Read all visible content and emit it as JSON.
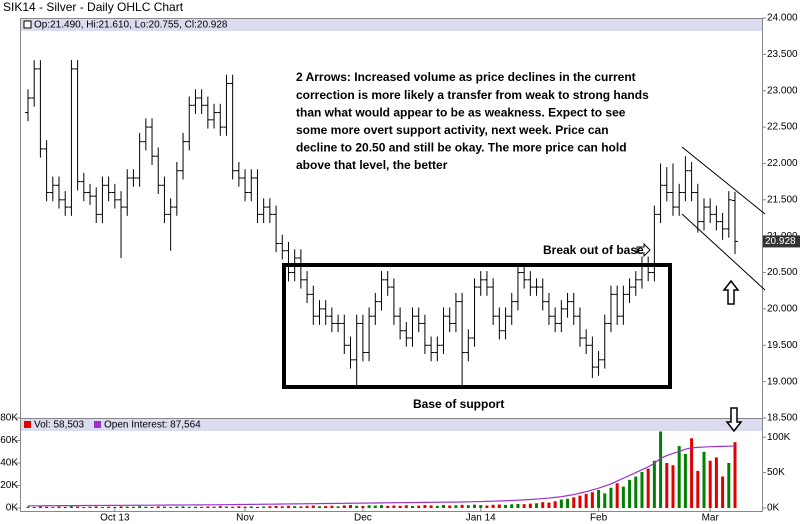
{
  "chart_data": {
    "type": "ohlc",
    "title": "SIK14 - Silver - Daily OHLC Chart",
    "legend_text": "Op:21.490, Hi:21.610, Lo:20.755, Cl:20.928",
    "bar_color": "#000000",
    "categories": [
      null,
      null,
      null,
      null,
      null,
      null,
      null,
      null,
      null,
      null,
      null,
      null,
      null,
      null,
      "Oct 13",
      null,
      null,
      null,
      null,
      null,
      null,
      null,
      null,
      null,
      null,
      null,
      null,
      null,
      null,
      null,
      null,
      null,
      null,
      null,
      null,
      "Nov",
      null,
      null,
      null,
      null,
      null,
      null,
      null,
      null,
      null,
      null,
      null,
      null,
      null,
      null,
      null,
      null,
      null,
      null,
      "Dec",
      null,
      null,
      null,
      null,
      null,
      null,
      null,
      null,
      null,
      null,
      null,
      null,
      null,
      null,
      null,
      null,
      null,
      null,
      "Jan 14",
      null,
      null,
      null,
      null,
      null,
      null,
      null,
      null,
      null,
      null,
      null,
      null,
      null,
      null,
      null,
      null,
      null,
      null,
      "Feb",
      null,
      null,
      null,
      null,
      null,
      null,
      null,
      null,
      null,
      null,
      null,
      null,
      null,
      null,
      null,
      null,
      null,
      "Mar",
      null,
      null,
      null,
      null
    ],
    "open": [
      22.7,
      22.9,
      23.3,
      22.2,
      21.6,
      21.7,
      21.5,
      21.4,
      23.3,
      21.75,
      21.6,
      21.55,
      21.3,
      21.7,
      21.6,
      21.5,
      21.4,
      21.8,
      21.8,
      22.3,
      22.5,
      22.1,
      21.7,
      21.3,
      21.4,
      21.9,
      22.3,
      22.8,
      22.9,
      22.8,
      22.6,
      22.7,
      22.5,
      23.1,
      21.9,
      21.8,
      21.6,
      21.8,
      21.3,
      21.4,
      21.3,
      20.9,
      20.8,
      20.5,
      20.7,
      20.4,
      20.2,
      19.9,
      20.0,
      19.9,
      19.8,
      19.8,
      19.5,
      19.3,
      19.8,
      19.4,
      19.9,
      20.1,
      20.4,
      20.3,
      19.9,
      19.7,
      19.6,
      19.9,
      19.8,
      19.5,
      19.4,
      19.5,
      19.9,
      19.8,
      20.1,
      19.4,
      19.6,
      20.3,
      20.4,
      20.3,
      19.9,
      19.7,
      19.9,
      20.1,
      20.5,
      20.4,
      20.3,
      20.3,
      20.1,
      19.9,
      19.8,
      20.0,
      20.1,
      19.9,
      19.6,
      19.5,
      19.2,
      19.3,
      19.8,
      20.2,
      19.9,
      20.2,
      20.3,
      20.4,
      20.6,
      20.5,
      21.3,
      21.7,
      21.6,
      21.4,
      21.6,
      21.9,
      21.6,
      21.2,
      21.4,
      21.3,
      21.2,
      21.1,
      21.49
    ],
    "high": [
      23.02,
      23.42,
      23.42,
      22.32,
      21.82,
      21.82,
      21.62,
      23.42,
      23.42,
      21.87,
      21.72,
      21.67,
      21.82,
      21.82,
      21.72,
      21.62,
      21.92,
      21.92,
      22.42,
      22.62,
      22.62,
      22.22,
      21.82,
      21.52,
      22.02,
      22.42,
      22.92,
      23.02,
      23.02,
      22.92,
      22.82,
      22.82,
      23.22,
      23.22,
      22.02,
      21.92,
      21.92,
      21.92,
      21.52,
      21.52,
      21.42,
      21.02,
      20.92,
      20.82,
      20.82,
      20.52,
      20.32,
      20.12,
      20.12,
      20.02,
      19.92,
      19.92,
      19.62,
      19.92,
      19.92,
      20.02,
      20.22,
      20.52,
      20.52,
      20.42,
      20.02,
      19.82,
      20.02,
      20.02,
      19.92,
      19.62,
      19.62,
      20.02,
      20.02,
      20.22,
      20.22,
      19.72,
      20.42,
      20.52,
      20.52,
      20.42,
      20.02,
      20.02,
      20.22,
      20.62,
      20.62,
      20.52,
      20.42,
      20.42,
      20.22,
      20.02,
      20.12,
      20.22,
      20.22,
      20.02,
      19.72,
      19.62,
      19.42,
      19.92,
      20.32,
      20.32,
      20.32,
      20.42,
      20.52,
      20.72,
      20.72,
      21.42,
      22.0,
      21.95,
      22.0,
      21.72,
      22.1,
      22.02,
      21.72,
      21.52,
      21.52,
      21.42,
      21.32,
      21.62,
      21.61
    ],
    "low": [
      22.58,
      22.78,
      22.08,
      21.48,
      21.48,
      21.38,
      21.28,
      21.28,
      21.63,
      21.48,
      21.43,
      21.18,
      21.18,
      21.48,
      21.38,
      20.7,
      21.28,
      21.68,
      21.68,
      22.18,
      21.98,
      21.58,
      21.18,
      20.8,
      21.28,
      21.78,
      22.18,
      22.68,
      22.68,
      22.48,
      22.48,
      22.38,
      22.38,
      21.78,
      21.68,
      21.48,
      21.48,
      21.18,
      21.18,
      21.18,
      20.78,
      20.68,
      20.38,
      20.38,
      20.28,
      20.08,
      19.78,
      19.78,
      19.78,
      19.68,
      19.68,
      19.38,
      19.18,
      18.95,
      19.28,
      19.28,
      19.78,
      19.98,
      20.18,
      19.78,
      19.58,
      19.48,
      19.48,
      19.68,
      19.38,
      19.28,
      19.28,
      19.38,
      19.68,
      19.68,
      18.9,
      19.28,
      19.48,
      20.18,
      20.18,
      19.78,
      19.58,
      19.58,
      19.78,
      19.98,
      20.28,
      20.18,
      20.18,
      19.98,
      19.78,
      19.68,
      19.68,
      19.88,
      19.78,
      19.48,
      19.38,
      19.05,
      19.08,
      19.18,
      19.68,
      19.78,
      19.78,
      20.08,
      20.18,
      20.28,
      20.38,
      20.38,
      21.18,
      21.48,
      21.28,
      21.28,
      21.48,
      21.48,
      21.05,
      21.08,
      21.18,
      21.08,
      20.95,
      20.98,
      20.755
    ],
    "close": [
      22.9,
      23.3,
      22.2,
      21.6,
      21.7,
      21.5,
      21.4,
      23.3,
      21.75,
      21.6,
      21.55,
      21.3,
      21.7,
      21.6,
      21.5,
      21.4,
      21.8,
      21.8,
      22.3,
      22.5,
      22.1,
      21.7,
      21.3,
      21.4,
      21.9,
      22.3,
      22.8,
      22.9,
      22.8,
      22.6,
      22.7,
      22.5,
      23.1,
      21.9,
      21.8,
      21.6,
      21.8,
      21.3,
      21.4,
      21.3,
      20.9,
      20.8,
      20.5,
      20.7,
      20.4,
      20.2,
      19.9,
      20.0,
      19.9,
      19.8,
      19.8,
      19.5,
      19.3,
      19.8,
      19.4,
      19.9,
      20.1,
      20.4,
      20.3,
      19.9,
      19.7,
      19.6,
      19.9,
      19.8,
      19.5,
      19.4,
      19.5,
      19.9,
      19.8,
      20.1,
      19.4,
      19.6,
      20.3,
      20.4,
      20.3,
      19.9,
      19.7,
      19.9,
      20.1,
      20.5,
      20.4,
      20.3,
      20.3,
      20.1,
      19.9,
      19.8,
      20.0,
      20.1,
      19.9,
      19.6,
      19.5,
      19.2,
      19.3,
      19.8,
      20.2,
      19.9,
      20.2,
      20.3,
      20.4,
      20.6,
      20.5,
      21.3,
      21.7,
      21.6,
      21.4,
      21.6,
      21.9,
      21.6,
      21.2,
      21.4,
      21.3,
      21.2,
      21.1,
      21.5,
      20.928
    ],
    "ylim": [
      18.5,
      24.0
    ],
    "yticks": [
      {
        "value": 18.5,
        "label": "18.500"
      },
      {
        "value": 19.0,
        "label": "19.000"
      },
      {
        "value": 19.5,
        "label": "19.500"
      },
      {
        "value": 20.0,
        "label": "20.000"
      },
      {
        "value": 20.5,
        "label": "20.500"
      },
      {
        "value": 21.0,
        "label": "21.000"
      },
      {
        "value": 21.5,
        "label": "21.500"
      },
      {
        "value": 22.0,
        "label": "22.000"
      },
      {
        "value": 22.5,
        "label": "22.500"
      },
      {
        "value": 23.0,
        "label": "23.000"
      },
      {
        "value": 23.5,
        "label": "23.500"
      },
      {
        "value": 24.0,
        "label": "24.000"
      }
    ],
    "annotations": {
      "note_lines": [
        "2 Arrows:  Increased volume as price declines in the current",
        "correction is more likely a transfer from weak to strong hands",
        "than what would appear to be as weakness.  Expect to see",
        "some more overt support activity, next week.  Price can",
        "decline to 20.50 and still be okay.  The more price can hold",
        "above that level, the better"
      ],
      "breakout": "Break out of base",
      "base": "Base of support"
    },
    "volume": {
      "name": "Vol: 58,503",
      "up_color": "#008000",
      "down_color": "#e00000",
      "values": [
        1200,
        900,
        1500,
        1100,
        800,
        1300,
        1000,
        1600,
        1200,
        900,
        1100,
        1400,
        900,
        1200,
        1000,
        1500,
        1300,
        1100,
        1600,
        1200,
        1000,
        1400,
        1200,
        900,
        1300,
        1500,
        1100,
        1200,
        1000,
        1400,
        1200,
        1600,
        1300,
        1100,
        1500,
        1200,
        1400,
        1000,
        1300,
        1600,
        1800,
        1500,
        2000,
        1700,
        1400,
        1900,
        2200,
        1600,
        1800,
        2000,
        1500,
        2300,
        2600,
        2000,
        1800,
        2400,
        2100,
        2500,
        1900,
        2200,
        2000,
        2400,
        1800,
        2100,
        2600,
        2300,
        1900,
        2700,
        2200,
        2400,
        2800,
        2500,
        3000,
        2600,
        2200,
        2900,
        3100,
        2700,
        3300,
        3600,
        3400,
        3900,
        4200,
        5200,
        4800,
        6000,
        7500,
        8200,
        9500,
        11000,
        12500,
        14000,
        16000,
        13000,
        18000,
        22000,
        19000,
        25000,
        28000,
        32000,
        35000,
        42000,
        68000,
        40000,
        38000,
        55000,
        48000,
        62000,
        33000,
        50000,
        42000,
        45000,
        28000,
        40000,
        58503
      ],
      "ylim": [
        0,
        80000
      ],
      "yticks": [
        {
          "value": 0,
          "label": "0K"
        },
        {
          "value": 20000,
          "label": "20K"
        },
        {
          "value": 40000,
          "label": "40K"
        },
        {
          "value": 60000,
          "label": "60K"
        },
        {
          "value": 80000,
          "label": "80K"
        }
      ]
    },
    "open_interest": {
      "name": "Open Interest: 87,564",
      "axis": "y2",
      "color": "#9933cc",
      "values": [
        3000,
        3100,
        3100,
        3200,
        3200,
        3300,
        3300,
        3400,
        3400,
        3500,
        3500,
        3600,
        3600,
        3700,
        3700,
        3800,
        3800,
        3900,
        3900,
        4000,
        4000,
        4100,
        4100,
        4200,
        4200,
        4300,
        4300,
        4400,
        4400,
        4500,
        4500,
        4600,
        4700,
        4800,
        4900,
        5000,
        5100,
        5200,
        5300,
        5400,
        5500,
        5600,
        5700,
        5800,
        5900,
        6000,
        6100,
        6200,
        6300,
        6400,
        6500,
        6600,
        6700,
        6800,
        6900,
        7000,
        7100,
        7200,
        7300,
        7400,
        7500,
        7600,
        7700,
        7800,
        7900,
        8000,
        8100,
        8200,
        8300,
        8400,
        8500,
        8700,
        8900,
        9100,
        9300,
        9600,
        9900,
        10200,
        10600,
        11000,
        11500,
        12000,
        12600,
        13300,
        14000,
        15000,
        16000,
        17500,
        19000,
        21000,
        23000,
        25500,
        28000,
        31000,
        34000,
        38000,
        42000,
        46000,
        50000,
        54000,
        58000,
        63000,
        70000,
        74000,
        77000,
        80000,
        83000,
        85000,
        85500,
        86000,
        86500,
        86800,
        87000,
        87200,
        87564
      ],
      "y2lim": [
        0,
        127000
      ],
      "y2ticks": [
        {
          "value": 0,
          "label": "0K"
        },
        {
          "value": 50000,
          "label": "50K"
        },
        {
          "value": 100000,
          "label": "100K"
        }
      ]
    }
  }
}
